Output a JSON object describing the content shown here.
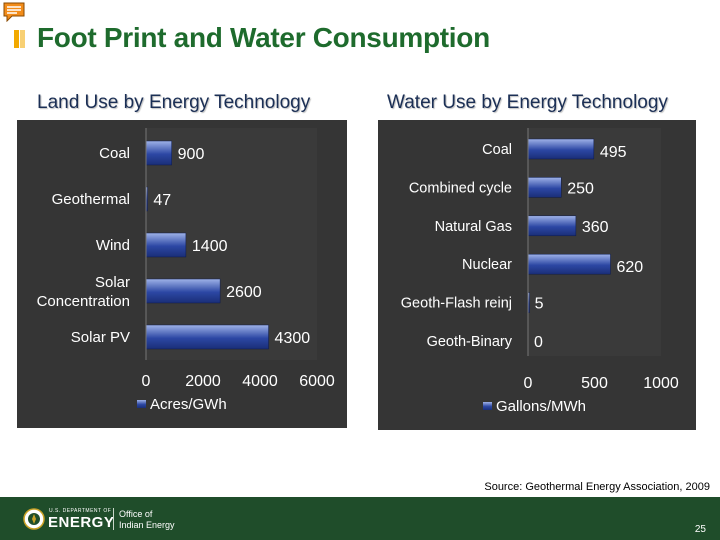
{
  "slide": {
    "title": "Foot Print and Water Consumption",
    "source": "Source: Geothermal Energy Association, 2009",
    "page_number": "25"
  },
  "footer": {
    "agency_small": "U.S. DEPARTMENT OF",
    "agency": "ENERGY",
    "office_line1": "Office of",
    "office_line2": "Indian Energy"
  },
  "colors": {
    "title": "#1e6b2d",
    "chart_title": "#1b2f55",
    "panel": "#353535",
    "bar_light": "#9fb3e8",
    "bar_dark": "#2c47a4",
    "footer": "#1f4d2a",
    "accent": "#f2a900"
  },
  "chart_data": [
    {
      "type": "bar",
      "orientation": "horizontal",
      "title": "Land Use by Energy Technology",
      "categories": [
        "Coal",
        "Geothermal",
        "Wind",
        "Solar Concentration",
        "Solar PV"
      ],
      "category_lines": [
        [
          "Coal"
        ],
        [
          "Geothermal"
        ],
        [
          "Wind"
        ],
        [
          "Solar",
          "Concentration"
        ],
        [
          "Solar PV"
        ]
      ],
      "series": [
        {
          "name": "Acres/GWh",
          "values": [
            900,
            47,
            1400,
            2600,
            4300
          ]
        }
      ],
      "data_labels": [
        "900",
        "47",
        "1400",
        "2600",
        "4300"
      ],
      "xlim": [
        0,
        6000
      ],
      "xticks": [
        0,
        2000,
        4000,
        6000
      ],
      "grid": false,
      "legend": "bottom"
    },
    {
      "type": "bar",
      "orientation": "horizontal",
      "title": "Water Use by Energy Technology",
      "categories": [
        "Coal",
        "Combined cycle",
        "Natural Gas",
        "Nuclear",
        "Geoth-Flash reinj",
        "Geoth-Binary"
      ],
      "category_lines": [
        [
          "Coal"
        ],
        [
          "Combined cycle"
        ],
        [
          "Natural Gas"
        ],
        [
          "Nuclear"
        ],
        [
          "Geoth-Flash reinj"
        ],
        [
          "Geoth-Binary"
        ]
      ],
      "series": [
        {
          "name": "Gallons/MWh",
          "values": [
            495,
            250,
            360,
            620,
            5,
            0
          ]
        }
      ],
      "data_labels": [
        "495",
        "250",
        "360",
        "620",
        "5",
        "0"
      ],
      "xlim": [
        0,
        1000
      ],
      "xticks": [
        0,
        500,
        1000
      ],
      "grid": false,
      "legend": "bottom"
    }
  ]
}
